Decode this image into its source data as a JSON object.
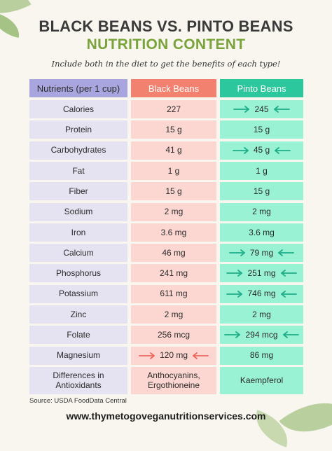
{
  "header": {
    "title_line1": "BLACK BEANS VS. PINTO BEANS",
    "title_line2": "NUTRITION CONTENT",
    "subtitle": "Include both in the diet to get the benefits of each type!"
  },
  "colors": {
    "background": "#f8f6ef",
    "title_green": "#7aa33c",
    "nutrient_header": "#a9a6df",
    "black_header": "#f2826f",
    "pinto_header": "#2dc79d",
    "nutrient_cell": "#e5e3f1",
    "black_cell": "#fcd7d2",
    "pinto_cell": "#98f2d3",
    "arrow_red": "#e8685e",
    "arrow_green": "#1fae8a"
  },
  "table": {
    "columns": [
      "Nutrients (per 1 cup)",
      "Black Beans",
      "Pinto Beans"
    ],
    "rows": [
      {
        "nutrient": "Calories",
        "black": "227",
        "pinto": "245",
        "highlight": "pinto"
      },
      {
        "nutrient": "Protein",
        "black": "15 g",
        "pinto": "15 g",
        "highlight": "none"
      },
      {
        "nutrient": "Carbohydrates",
        "black": "41 g",
        "pinto": "45 g",
        "highlight": "pinto"
      },
      {
        "nutrient": "Fat",
        "black": "1 g",
        "pinto": "1 g",
        "highlight": "none"
      },
      {
        "nutrient": "Fiber",
        "black": "15 g",
        "pinto": "15 g",
        "highlight": "none"
      },
      {
        "nutrient": "Sodium",
        "black": "2 mg",
        "pinto": "2 mg",
        "highlight": "none"
      },
      {
        "nutrient": "Iron",
        "black": "3.6 mg",
        "pinto": "3.6 mg",
        "highlight": "none"
      },
      {
        "nutrient": "Calcium",
        "black": "46 mg",
        "pinto": "79 mg",
        "highlight": "pinto"
      },
      {
        "nutrient": "Phosphorus",
        "black": "241 mg",
        "pinto": "251 mg",
        "highlight": "pinto"
      },
      {
        "nutrient": "Potassium",
        "black": "611 mg",
        "pinto": "746 mg",
        "highlight": "pinto"
      },
      {
        "nutrient": "Zinc",
        "black": "2 mg",
        "pinto": "2 mg",
        "highlight": "none"
      },
      {
        "nutrient": "Folate",
        "black": "256 mcg",
        "pinto": "294 mcg",
        "highlight": "pinto"
      },
      {
        "nutrient": "Magnesium",
        "black": "120 mg",
        "pinto": "86 mg",
        "highlight": "black"
      },
      {
        "nutrient": "Differences in Antioxidants",
        "black": "Anthocyanins, Ergothioneine",
        "pinto": "Kaempferol",
        "highlight": "none"
      }
    ]
  },
  "footer": {
    "source": "Source: USDA FoodData Central",
    "website": "www.thymetogoveganutritionservices.com"
  }
}
